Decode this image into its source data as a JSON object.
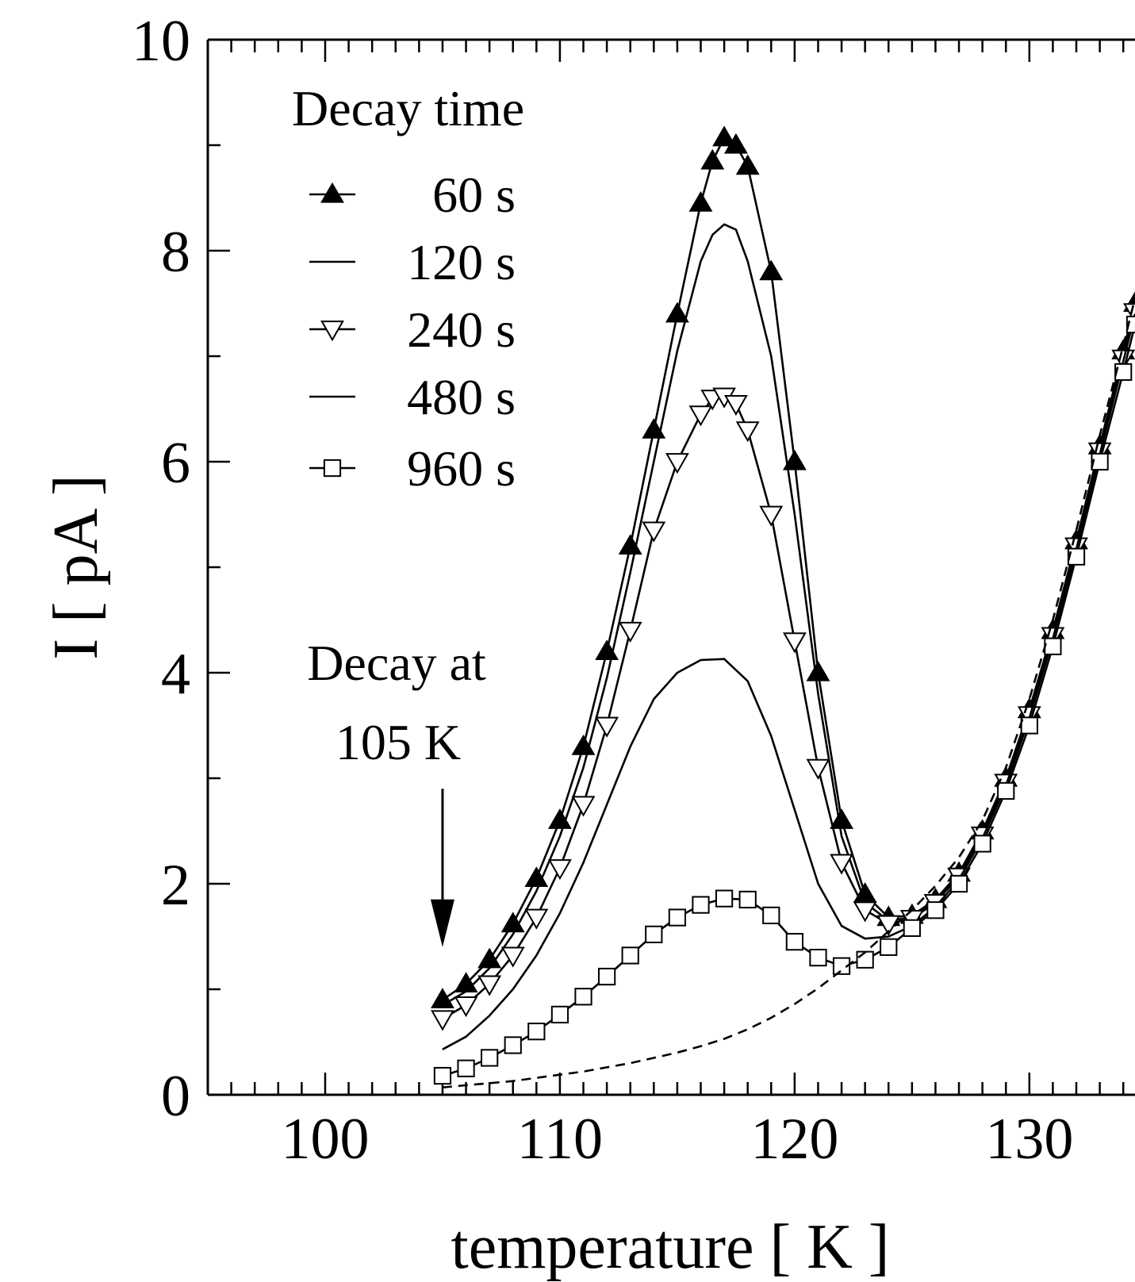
{
  "chart_data": {
    "type": "line",
    "title": "",
    "xlabel": "temperature [ K ]",
    "ylabel": "I [ pA ]",
    "xlim": [
      95,
      134.5
    ],
    "ylim": [
      0,
      10
    ],
    "xticks": [
      100,
      110,
      120,
      130
    ],
    "yticks": [
      0,
      2,
      4,
      6,
      8,
      10
    ],
    "x_minor_step": 1,
    "y_minor_step": 1,
    "grid": false,
    "legend": {
      "title": "Decay time",
      "placement": "top-left",
      "entries": [
        {
          "label": "60 s",
          "marker": "triangle-up-filled"
        },
        {
          "label": "120 s",
          "marker": "none"
        },
        {
          "label": "240 s",
          "marker": "triangle-down-open"
        },
        {
          "label": "480 s",
          "marker": "none"
        },
        {
          "label": "960 s",
          "marker": "square-open"
        }
      ]
    },
    "annotation": {
      "lines": [
        "Decay at",
        "105 K"
      ],
      "arrow_x": 105,
      "arrow_from_y": 2.9,
      "arrow_to_y": 1.4
    },
    "series": [
      {
        "name": "60 s",
        "marker": "triangle-up-filled",
        "dash": "solid",
        "markers": true,
        "points": [
          [
            105,
            0.9
          ],
          [
            106,
            1.05
          ],
          [
            107,
            1.28
          ],
          [
            108,
            1.62
          ],
          [
            109,
            2.05
          ],
          [
            110,
            2.6
          ],
          [
            111,
            3.3
          ],
          [
            112,
            4.2
          ],
          [
            113,
            5.2
          ],
          [
            114,
            6.3
          ],
          [
            115,
            7.4
          ],
          [
            116,
            8.45
          ],
          [
            116.5,
            8.85
          ],
          [
            117,
            9.07
          ],
          [
            117.5,
            9.0
          ],
          [
            118,
            8.8
          ],
          [
            119,
            7.8
          ],
          [
            120,
            6.0
          ],
          [
            121,
            4.0
          ],
          [
            122,
            2.6
          ],
          [
            123,
            1.9
          ],
          [
            124,
            1.68
          ],
          [
            125,
            1.7
          ],
          [
            126,
            1.85
          ],
          [
            127,
            2.1
          ],
          [
            128,
            2.5
          ],
          [
            129,
            3.0
          ],
          [
            130,
            3.65
          ],
          [
            131,
            4.4
          ],
          [
            132,
            5.25
          ],
          [
            133,
            6.15
          ],
          [
            134,
            7.05
          ],
          [
            134.5,
            7.5
          ]
        ]
      },
      {
        "name": "120 s",
        "marker": "none",
        "dash": "solid",
        "markers": false,
        "points": [
          [
            105,
            0.85
          ],
          [
            106,
            0.98
          ],
          [
            107,
            1.2
          ],
          [
            108,
            1.52
          ],
          [
            109,
            1.93
          ],
          [
            110,
            2.45
          ],
          [
            111,
            3.1
          ],
          [
            112,
            3.95
          ],
          [
            113,
            4.95
          ],
          [
            114,
            6.0
          ],
          [
            115,
            7.05
          ],
          [
            116,
            7.9
          ],
          [
            116.5,
            8.15
          ],
          [
            117,
            8.25
          ],
          [
            117.5,
            8.2
          ],
          [
            118,
            7.9
          ],
          [
            119,
            7.0
          ],
          [
            120,
            5.5
          ],
          [
            121,
            3.8
          ],
          [
            122,
            2.45
          ],
          [
            123,
            1.82
          ],
          [
            124,
            1.65
          ],
          [
            125,
            1.68
          ],
          [
            126,
            1.83
          ],
          [
            127,
            2.08
          ],
          [
            128,
            2.48
          ],
          [
            129,
            2.98
          ],
          [
            130,
            3.62
          ],
          [
            131,
            4.38
          ],
          [
            132,
            5.22
          ],
          [
            133,
            6.12
          ],
          [
            134,
            7.0
          ],
          [
            134.5,
            7.45
          ]
        ]
      },
      {
        "name": "240 s",
        "marker": "triangle-down-open",
        "dash": "solid",
        "markers": true,
        "points": [
          [
            105,
            0.72
          ],
          [
            106,
            0.85
          ],
          [
            107,
            1.05
          ],
          [
            108,
            1.32
          ],
          [
            109,
            1.68
          ],
          [
            110,
            2.15
          ],
          [
            111,
            2.75
          ],
          [
            112,
            3.5
          ],
          [
            113,
            4.4
          ],
          [
            114,
            5.35
          ],
          [
            115,
            6.0
          ],
          [
            116,
            6.45
          ],
          [
            116.5,
            6.6
          ],
          [
            117,
            6.62
          ],
          [
            117.5,
            6.55
          ],
          [
            118,
            6.3
          ],
          [
            119,
            5.5
          ],
          [
            120,
            4.3
          ],
          [
            121,
            3.1
          ],
          [
            122,
            2.2
          ],
          [
            123,
            1.75
          ],
          [
            124,
            1.62
          ],
          [
            125,
            1.67
          ],
          [
            126,
            1.82
          ],
          [
            127,
            2.07
          ],
          [
            128,
            2.46
          ],
          [
            129,
            2.96
          ],
          [
            130,
            3.6
          ],
          [
            131,
            4.35
          ],
          [
            132,
            5.2
          ],
          [
            133,
            6.1
          ],
          [
            134,
            6.98
          ],
          [
            134.5,
            7.42
          ]
        ]
      },
      {
        "name": "480 s",
        "marker": "none",
        "dash": "solid",
        "markers": false,
        "points": [
          [
            105,
            0.43
          ],
          [
            106,
            0.55
          ],
          [
            107,
            0.75
          ],
          [
            108,
            1.0
          ],
          [
            109,
            1.32
          ],
          [
            110,
            1.72
          ],
          [
            111,
            2.2
          ],
          [
            112,
            2.75
          ],
          [
            113,
            3.3
          ],
          [
            114,
            3.75
          ],
          [
            115,
            4.0
          ],
          [
            116,
            4.12
          ],
          [
            117,
            4.13
          ],
          [
            118,
            3.92
          ],
          [
            119,
            3.4
          ],
          [
            120,
            2.7
          ],
          [
            121,
            2.0
          ],
          [
            122,
            1.6
          ],
          [
            123,
            1.48
          ],
          [
            124,
            1.5
          ],
          [
            125,
            1.6
          ],
          [
            126,
            1.78
          ],
          [
            127,
            2.04
          ],
          [
            128,
            2.43
          ],
          [
            129,
            2.93
          ],
          [
            130,
            3.57
          ],
          [
            131,
            4.32
          ],
          [
            132,
            5.17
          ],
          [
            133,
            6.07
          ],
          [
            134,
            6.95
          ],
          [
            134.5,
            7.4
          ]
        ]
      },
      {
        "name": "960 s",
        "marker": "square-open",
        "dash": "solid",
        "markers": true,
        "points": [
          [
            105,
            0.18
          ],
          [
            106,
            0.25
          ],
          [
            107,
            0.35
          ],
          [
            108,
            0.47
          ],
          [
            109,
            0.6
          ],
          [
            110,
            0.76
          ],
          [
            111,
            0.93
          ],
          [
            112,
            1.12
          ],
          [
            113,
            1.32
          ],
          [
            114,
            1.52
          ],
          [
            115,
            1.68
          ],
          [
            116,
            1.8
          ],
          [
            117,
            1.86
          ],
          [
            118,
            1.85
          ],
          [
            119,
            1.7
          ],
          [
            120,
            1.45
          ],
          [
            121,
            1.3
          ],
          [
            122,
            1.22
          ],
          [
            123,
            1.28
          ],
          [
            124,
            1.4
          ],
          [
            125,
            1.58
          ],
          [
            126,
            1.75
          ],
          [
            127,
            2.0
          ],
          [
            128,
            2.38
          ],
          [
            129,
            2.88
          ],
          [
            130,
            3.5
          ],
          [
            131,
            4.25
          ],
          [
            132,
            5.1
          ],
          [
            133,
            6.0
          ],
          [
            134,
            6.85
          ],
          [
            134.5,
            7.3
          ]
        ]
      },
      {
        "name": "",
        "marker": "none",
        "dash": "dashed",
        "markers": false,
        "points": [
          [
            105,
            0.07
          ],
          [
            106,
            0.09
          ],
          [
            107,
            0.11
          ],
          [
            108,
            0.13
          ],
          [
            109,
            0.16
          ],
          [
            110,
            0.19
          ],
          [
            111,
            0.22
          ],
          [
            112,
            0.26
          ],
          [
            113,
            0.3
          ],
          [
            114,
            0.35
          ],
          [
            115,
            0.4
          ],
          [
            116,
            0.46
          ],
          [
            117,
            0.53
          ],
          [
            118,
            0.62
          ],
          [
            119,
            0.73
          ],
          [
            120,
            0.86
          ],
          [
            121,
            1.01
          ],
          [
            122,
            1.18
          ],
          [
            123,
            1.35
          ],
          [
            124,
            1.55
          ],
          [
            125,
            1.75
          ],
          [
            126,
            1.98
          ],
          [
            127,
            2.25
          ],
          [
            128,
            2.6
          ],
          [
            129,
            3.1
          ],
          [
            130,
            3.75
          ],
          [
            131,
            4.5
          ],
          [
            132,
            5.35
          ],
          [
            133,
            6.25
          ],
          [
            134,
            7.1
          ],
          [
            134.5,
            7.55
          ]
        ]
      }
    ]
  }
}
